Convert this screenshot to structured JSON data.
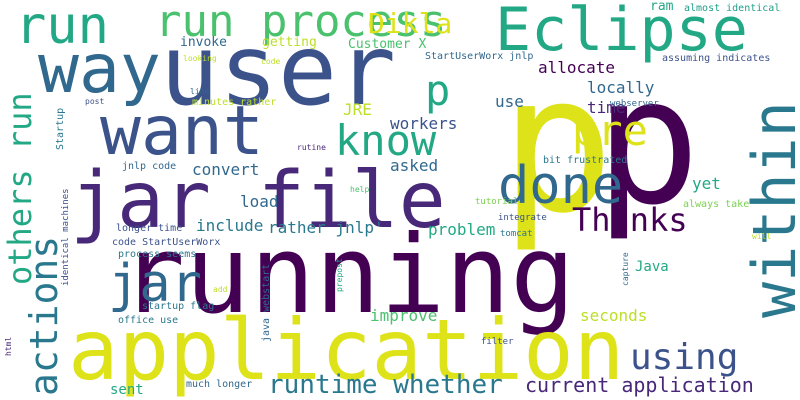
{
  "colors": {
    "background": "#ffffff",
    "yellow": "#dde318",
    "yellow_light": "#bcdf27",
    "green": "#4ac16d",
    "green_light": "#7ad151",
    "teal": "#22a884",
    "teal_dark": "#1f9e89",
    "blue_teal": "#2a788e",
    "blue": "#31688e",
    "indigo": "#3b528b",
    "purple": "#482878",
    "dark_purple": "#440154"
  },
  "words": [
    {
      "text": "p",
      "color": "#dde318"
    },
    {
      "text": "p",
      "color": "#440154"
    },
    {
      "text": "running",
      "color": "#440154"
    },
    {
      "text": "user",
      "color": "#3b528b"
    },
    {
      "text": "jar file",
      "color": "#482878"
    },
    {
      "text": "application",
      "color": "#dde318"
    },
    {
      "text": "way",
      "color": "#31688e"
    },
    {
      "text": "Eclipse",
      "color": "#22a884"
    },
    {
      "text": "want",
      "color": "#3b528b"
    },
    {
      "text": "within",
      "color": "#2a788e"
    },
    {
      "text": "run process",
      "color": "#4ac16d"
    },
    {
      "text": "done",
      "color": "#31688e"
    },
    {
      "text": "jar",
      "color": "#31688e"
    },
    {
      "text": "run",
      "color": "#22a884"
    },
    {
      "text": "know",
      "color": "#22a884"
    },
    {
      "text": "pre",
      "color": "#dde318"
    },
    {
      "text": "p",
      "color": "#22a884"
    },
    {
      "text": "Dikla",
      "color": "#dde318"
    },
    {
      "text": "Thanks",
      "color": "#440154"
    },
    {
      "text": "actions",
      "color": "#2a788e"
    },
    {
      "text": "others run",
      "color": "#22a884"
    },
    {
      "text": "using",
      "color": "#3b528b"
    },
    {
      "text": "runtime whether",
      "color": "#2a788e"
    },
    {
      "text": "current application",
      "color": "#482878"
    },
    {
      "text": "time",
      "color": "#482878"
    },
    {
      "text": "workers",
      "color": "#3b528b"
    },
    {
      "text": "locally",
      "color": "#31688e"
    },
    {
      "text": "allocate",
      "color": "#440154"
    },
    {
      "text": "asked",
      "color": "#31688e"
    },
    {
      "text": "convert",
      "color": "#31688e"
    },
    {
      "text": "load",
      "color": "#31688e"
    },
    {
      "text": "include",
      "color": "#2a788e"
    },
    {
      "text": "rather jnlp'",
      "color": "#2a788e"
    },
    {
      "text": "problem",
      "color": "#22a884"
    },
    {
      "text": "improve",
      "color": "#4ac16d"
    },
    {
      "text": "seconds",
      "color": "#bcdf27"
    },
    {
      "text": "use",
      "color": "#31688e"
    },
    {
      "text": "yet",
      "color": "#22a884"
    },
    {
      "text": "JRE",
      "color": "#bcdf27"
    },
    {
      "text": "Java",
      "color": "#22a884"
    },
    {
      "text": "sent",
      "color": "#22a884"
    },
    {
      "text": "invoke",
      "color": "#31688e"
    },
    {
      "text": "getting",
      "color": "#bcdf27"
    },
    {
      "text": "Customer X",
      "color": "#4ac16d"
    },
    {
      "text": "ram",
      "color": "#22a884"
    },
    {
      "text": "almost identical",
      "color": "#1f9e89"
    },
    {
      "text": "assuming indicates",
      "color": "#3b528b"
    },
    {
      "text": "StartUserWorx jnlp",
      "color": "#31688e"
    },
    {
      "text": "minutes rather",
      "color": "#bcdf27"
    },
    {
      "text": "jnlp code",
      "color": "#31688e"
    },
    {
      "text": "Startup",
      "color": "#2a788e"
    },
    {
      "text": "code StartUserWorx",
      "color": "#3b528b"
    },
    {
      "text": "longer time",
      "color": "#3b528b"
    },
    {
      "text": "process seems",
      "color": "#2a788e"
    },
    {
      "text": "startup flag",
      "color": "#2a788e"
    },
    {
      "text": "office use",
      "color": "#2a788e"
    },
    {
      "text": "much longer",
      "color": "#31688e"
    },
    {
      "text": "java webstart",
      "color": "#31688e"
    },
    {
      "text": "bit frustrated",
      "color": "#2a788e"
    },
    {
      "text": "always take",
      "color": "#7ad151"
    },
    {
      "text": "tomcat",
      "color": "#2a788e"
    },
    {
      "text": "integrate",
      "color": "#3b528b"
    },
    {
      "text": "tutorial",
      "color": "#7ad151"
    },
    {
      "text": "webserver",
      "color": "#31688e"
    },
    {
      "text": "identical machines",
      "color": "#3b528b"
    },
    {
      "text": "looking",
      "color": "#bcdf27"
    },
    {
      "text": "code",
      "color": "#bcdf27"
    },
    {
      "text": "line",
      "color": "#31688e"
    },
    {
      "text": "post",
      "color": "#3b528b"
    },
    {
      "text": "rutine",
      "color": "#482878"
    },
    {
      "text": "help",
      "color": "#4ac16d"
    },
    {
      "text": "prepost",
      "color": "#22a884"
    },
    {
      "text": "add",
      "color": "#bcdf27"
    },
    {
      "text": "capture",
      "color": "#31688e"
    },
    {
      "text": "filter",
      "color": "#3b528b"
    },
    {
      "text": "will",
      "color": "#bcdf27"
    },
    {
      "text": "html",
      "color": "#482878"
    }
  ]
}
